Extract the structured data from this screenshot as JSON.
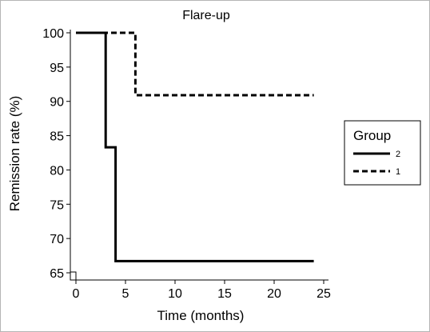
{
  "chart_data": {
    "type": "line",
    "title": "Flare-up",
    "xlabel": "Time (months)",
    "ylabel": "Remission rate (%)",
    "xlim": [
      0,
      25
    ],
    "ylim": [
      65,
      100
    ],
    "xticks": [
      0,
      5,
      10,
      15,
      20,
      25
    ],
    "yticks": [
      65,
      70,
      75,
      80,
      85,
      90,
      95,
      100
    ],
    "grid": false,
    "step": true,
    "legend": {
      "title": "Group",
      "placement": "right"
    },
    "series": [
      {
        "name": "2",
        "style": "solid",
        "color": "#000000",
        "x": [
          0,
          3,
          4,
          24
        ],
        "y": [
          100,
          83.3,
          66.7,
          66.7
        ]
      },
      {
        "name": "1",
        "style": "dashed",
        "color": "#000000",
        "x": [
          0,
          6,
          24
        ],
        "y": [
          100,
          90.9,
          90.9
        ]
      }
    ]
  }
}
